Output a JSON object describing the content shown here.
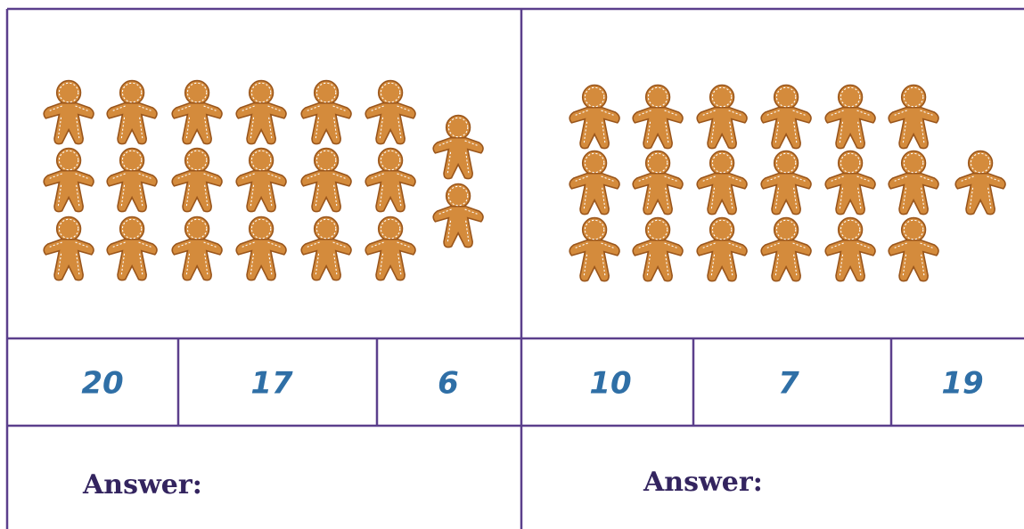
{
  "panels": [
    {
      "options": [
        "20",
        "17",
        "6"
      ],
      "answer_label": "Answer:"
    },
    {
      "options": [
        "10",
        "7",
        "19"
      ],
      "answer_label": "Answer:"
    }
  ]
}
